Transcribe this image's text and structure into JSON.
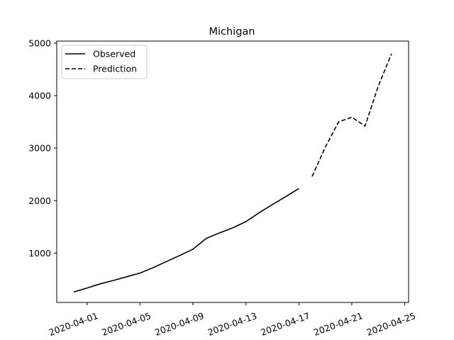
{
  "chart_data": {
    "type": "line",
    "title": "Michigan",
    "xlabel": "",
    "ylabel": "",
    "x_axis_type": "date",
    "xlim": [
      "2020-03-29 17:00",
      "2020-04-25 07:00"
    ],
    "ylim": [
      60,
      5040
    ],
    "x_ticks": [
      "2020-04-01",
      "2020-04-05",
      "2020-04-09",
      "2020-04-13",
      "2020-04-17",
      "2020-04-21",
      "2020-04-25"
    ],
    "y_ticks": [
      1000,
      2000,
      3000,
      4000,
      5000
    ],
    "x_tick_rotation_deg": 20,
    "grid": false,
    "legend_position": "upper-left",
    "series": [
      {
        "name": "Observed",
        "style": "solid",
        "color": "#000000",
        "points": [
          {
            "x": "2020-03-31",
            "y": 260
          },
          {
            "x": "2020-04-01",
            "y": 335
          },
          {
            "x": "2020-04-02",
            "y": 415
          },
          {
            "x": "2020-04-03",
            "y": 480
          },
          {
            "x": "2020-04-04",
            "y": 550
          },
          {
            "x": "2020-04-05",
            "y": 620
          },
          {
            "x": "2020-04-06",
            "y": 725
          },
          {
            "x": "2020-04-07",
            "y": 840
          },
          {
            "x": "2020-04-08",
            "y": 955
          },
          {
            "x": "2020-04-09",
            "y": 1075
          },
          {
            "x": "2020-04-10",
            "y": 1280
          },
          {
            "x": "2020-04-11",
            "y": 1385
          },
          {
            "x": "2020-04-12",
            "y": 1480
          },
          {
            "x": "2020-04-13",
            "y": 1600
          },
          {
            "x": "2020-04-14",
            "y": 1770
          },
          {
            "x": "2020-04-15",
            "y": 1925
          },
          {
            "x": "2020-04-16",
            "y": 2075
          },
          {
            "x": "2020-04-17",
            "y": 2230
          }
        ]
      },
      {
        "name": "Prediction",
        "style": "dashed",
        "color": "#000000",
        "points": [
          {
            "x": "2020-04-18",
            "y": 2460
          },
          {
            "x": "2020-04-19",
            "y": 3020
          },
          {
            "x": "2020-04-20",
            "y": 3500
          },
          {
            "x": "2020-04-21",
            "y": 3590
          },
          {
            "x": "2020-04-22",
            "y": 3420
          },
          {
            "x": "2020-04-23",
            "y": 4180
          },
          {
            "x": "2020-04-24",
            "y": 4800
          }
        ]
      }
    ]
  }
}
